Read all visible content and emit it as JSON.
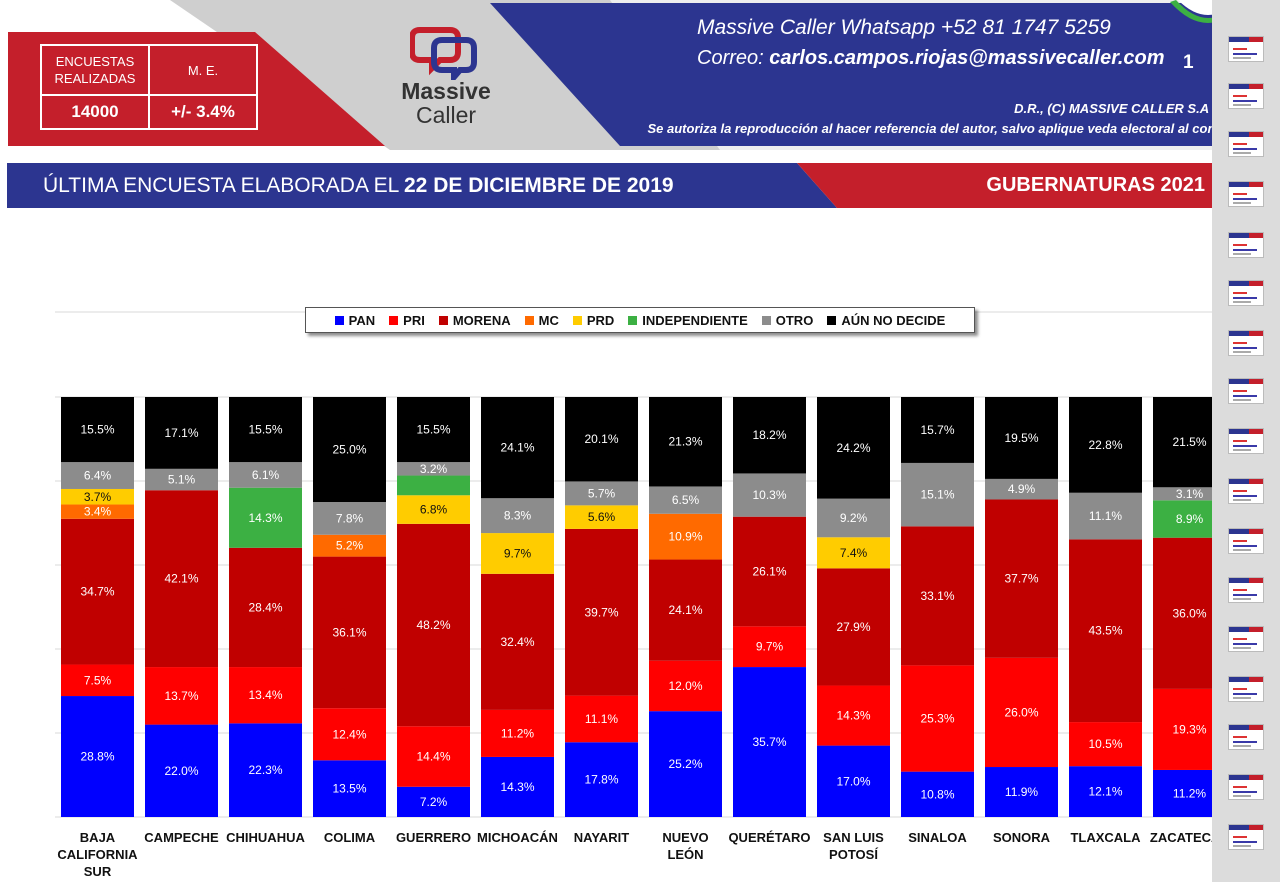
{
  "header": {
    "stats": {
      "label_surveys": "ENCUESTAS REALIZADAS",
      "label_margin": "M. E.",
      "value_surveys": "14000",
      "value_margin": "+/- 3.4%"
    },
    "logo_line1": "Massive",
    "logo_line2": "Caller",
    "contact_line1": "Massive Caller Whatsapp   +52  81 1747 5259",
    "contact_email_label": "Correo:",
    "contact_email": "carlos.campos.riojas@massivecaller.com",
    "page_number": "1",
    "copyright_line1": "D.R., (C) MASSIVE CALLER S.A DE C.V.",
    "copyright_line2": "Se autoriza la reproducción al hacer referencia del autor, salvo aplique veda electoral al contenido."
  },
  "band": {
    "label": "ÚLTIMA ENCUESTA ELABORADA EL",
    "date": "22 DE DICIEMBRE DE 2019",
    "right": "GUBERNATURAS 2021"
  },
  "colors": {
    "PAN": "#0000ff",
    "PRI": "#ff0000",
    "MORENA": "#c00000",
    "MC": "#ff6a00",
    "PRD": "#ffcc00",
    "INDEPENDIENTE": "#3cb043",
    "OTRO": "#8c8c8c",
    "AÚN NO DECIDE": "#000000"
  },
  "chart_data": {
    "type": "bar",
    "stacked": true,
    "normalized": true,
    "legend": "top",
    "categories": [
      "BAJA CALIFORNIA SUR",
      "CAMPECHE",
      "CHIHUAHUA",
      "COLIMA",
      "GUERRERO",
      "MICHOACÁN",
      "NAYARIT",
      "NUEVO LEÓN",
      "QUERÉTARO",
      "SAN LUIS POTOSÍ",
      "SINALOA",
      "SONORA",
      "TLAXCALA",
      "ZACATECAS"
    ],
    "series": [
      {
        "name": "PAN",
        "values": [
          28.8,
          22.0,
          22.3,
          13.5,
          7.2,
          14.3,
          17.8,
          25.2,
          35.7,
          17.0,
          10.8,
          11.9,
          12.1,
          11.2
        ]
      },
      {
        "name": "PRI",
        "values": [
          7.5,
          13.7,
          13.4,
          12.4,
          14.4,
          11.2,
          11.1,
          12.0,
          9.7,
          14.3,
          25.3,
          26.0,
          10.5,
          19.3
        ]
      },
      {
        "name": "MORENA",
        "values": [
          34.7,
          42.1,
          28.4,
          36.1,
          48.2,
          32.4,
          39.7,
          24.1,
          26.1,
          27.9,
          33.1,
          37.7,
          43.5,
          36.0
        ]
      },
      {
        "name": "MC",
        "values": [
          3.4,
          null,
          null,
          5.2,
          null,
          null,
          null,
          10.9,
          null,
          null,
          null,
          null,
          null,
          null
        ]
      },
      {
        "name": "PRD",
        "values": [
          3.7,
          null,
          null,
          null,
          6.8,
          9.7,
          5.6,
          null,
          null,
          7.4,
          null,
          null,
          null,
          null
        ]
      },
      {
        "name": "INDEPENDIENTE",
        "values": [
          null,
          null,
          14.3,
          null,
          4.7,
          null,
          null,
          null,
          null,
          null,
          null,
          null,
          null,
          8.9
        ]
      },
      {
        "name": "OTRO",
        "values": [
          6.4,
          5.1,
          6.1,
          7.8,
          3.2,
          8.3,
          5.7,
          6.5,
          10.3,
          9.2,
          15.1,
          4.9,
          11.1,
          3.1
        ]
      },
      {
        "name": "AÚN NO DECIDE",
        "values": [
          15.5,
          17.1,
          15.5,
          25.0,
          15.5,
          24.1,
          20.1,
          21.3,
          18.2,
          24.2,
          15.7,
          19.5,
          22.8,
          21.5
        ]
      }
    ],
    "data_labels": [
      [
        "28.8%",
        "7.5%",
        "34.7%",
        "3.4%",
        "3.7%",
        "",
        "6.4%",
        "15.5%"
      ],
      [
        "22.0%",
        "13.7%",
        "42.1%",
        "",
        "",
        "",
        "5.1%",
        "17.1%"
      ],
      [
        "22.3%",
        "13.4%",
        "28.4%",
        "",
        "",
        "14.3%",
        "6.1%",
        "15.5%"
      ],
      [
        "13.5%",
        "12.4%",
        "36.1%",
        "5.2%",
        "",
        "",
        "7.8%",
        "25.0%"
      ],
      [
        "7.2%",
        "14.4%",
        "48.2%",
        "",
        "6.8%",
        "",
        "3.2%",
        "15.5%"
      ],
      [
        "14.3%",
        "11.2%",
        "32.4%",
        "",
        "9.7%",
        "",
        "8.3%",
        "24.1%"
      ],
      [
        "17.8%",
        "11.1%",
        "39.7%",
        "",
        "5.6%",
        "",
        "5.7%",
        "20.1%"
      ],
      [
        "25.2%",
        "12.0%",
        "24.1%",
        "10.9%",
        "",
        "",
        "6.5%",
        "21.3%"
      ],
      [
        "35.7%",
        "9.7%",
        "26.1%",
        "",
        "",
        "",
        "10.3%",
        "18.2%"
      ],
      [
        "17.0%",
        "14.3%",
        "27.9%",
        "",
        "7.4%",
        "",
        "9.2%",
        "24.2%"
      ],
      [
        "10.8%",
        "25.3%",
        "33.1%",
        "",
        "",
        "",
        "15.1%",
        "15.7%"
      ],
      [
        "11.9%",
        "26.0%",
        "37.7%",
        "",
        "",
        "",
        "4.9%",
        "19.5%"
      ],
      [
        "12.1%",
        "10.5%",
        "43.5%",
        "",
        "",
        "",
        "11.1%",
        "22.8%"
      ],
      [
        "11.2%",
        "19.3%",
        "36.0%",
        "",
        "",
        "8.9%",
        "3.1%",
        "21.5%"
      ]
    ],
    "category_labels": [
      [
        "BAJA",
        "CALIFORNIA",
        "SUR"
      ],
      [
        "CAMPECHE"
      ],
      [
        "CHIHUAHUA"
      ],
      [
        "COLIMA"
      ],
      [
        "GUERRERO"
      ],
      [
        "MICHOACÁN"
      ],
      [
        "NAYARIT"
      ],
      [
        "NUEVO",
        "LEÓN"
      ],
      [
        "QUERÉTARO"
      ],
      [
        "SAN LUIS",
        "POTOSÍ"
      ],
      [
        "SINALOA"
      ],
      [
        "SONORA"
      ],
      [
        "TLAXCALA"
      ],
      [
        "ZACATECAS"
      ]
    ]
  }
}
